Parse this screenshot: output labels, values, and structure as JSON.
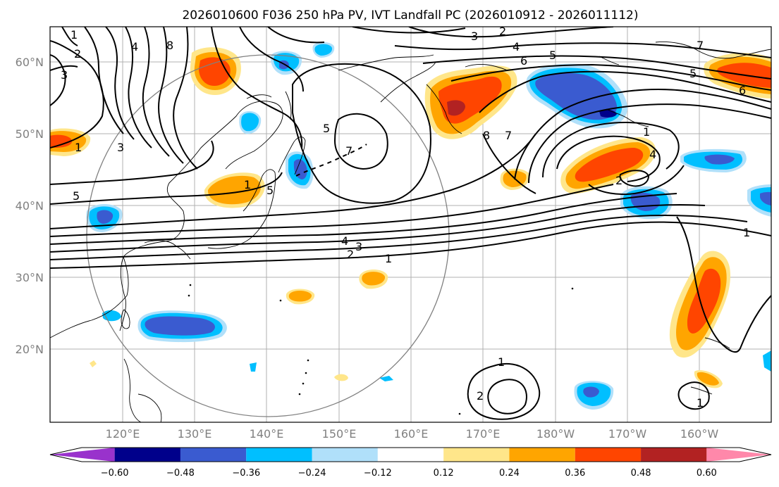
{
  "title": "2026010600 F036 250 hPa PV, IVT Landfall PC (2026010912 - 2026011112)",
  "lat_labels": [
    "60°N",
    "50°N",
    "40°N",
    "30°N",
    "20°N"
  ],
  "lon_labels": [
    "120°E",
    "130°E",
    "140°E",
    "150°E",
    "160°E",
    "170°E",
    "180°W",
    "170°W",
    "160°W"
  ],
  "colorbar": {
    "ticks": [
      "−0.60",
      "−0.48",
      "−0.36",
      "−0.24",
      "−0.12",
      "0.12",
      "0.24",
      "0.36",
      "0.48",
      "0.60"
    ],
    "colors": [
      "#9932cc",
      "#00008b",
      "#3a5bd0",
      "#00bfff",
      "#b0e0fa",
      "#ffffff",
      "#ffe68a",
      "#ffa500",
      "#ff4500",
      "#b22222",
      "#ff88aa"
    ]
  },
  "contour_labels": [
    "1",
    "2",
    "3",
    "4",
    "5",
    "6",
    "7",
    "8"
  ],
  "colors": {
    "contour": "#000000",
    "grid": "#b0b0b0",
    "circle": "#808080",
    "coast": "#000000"
  }
}
